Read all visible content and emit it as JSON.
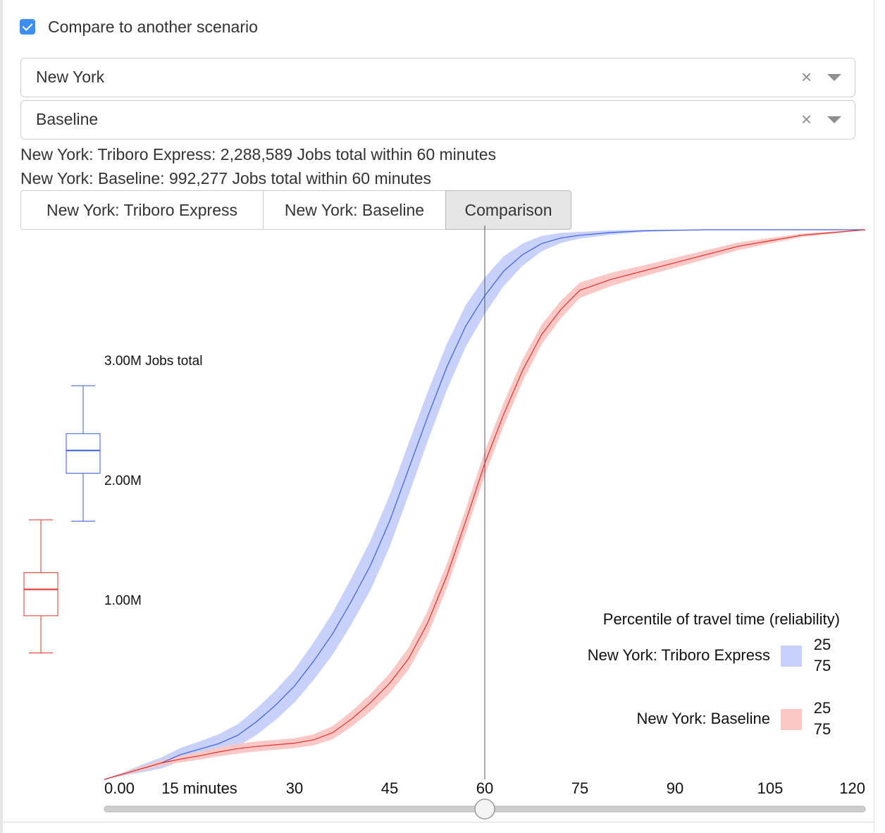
{
  "compare": {
    "label": "Compare to another scenario",
    "checked": true
  },
  "selects": [
    {
      "value": "New York",
      "clear_icon": "×"
    },
    {
      "value": "Baseline",
      "clear_icon": "×"
    }
  ],
  "summary": [
    "New York: Triboro Express: 2,288,589 Jobs total within 60 minutes",
    "New York: Baseline: 992,277 Jobs total within 60 minutes"
  ],
  "tabs": [
    {
      "label": "New York: Triboro Express",
      "active": false
    },
    {
      "label": "New York: Baseline",
      "active": false
    },
    {
      "label": "Comparison",
      "active": true
    }
  ],
  "colors": {
    "accent": "#3b8ff0",
    "triboro_line": "#3d5ee6",
    "triboro_band": "#c7d1fa",
    "baseline_line": "#e8302a",
    "baseline_band": "#fbc8c6"
  },
  "chart_data": {
    "type": "area",
    "x_tick_labels": [
      "0.00",
      "15 minutes",
      "30",
      "45",
      "60",
      "75",
      "90",
      "105",
      "120"
    ],
    "x_tick_values": [
      0,
      15,
      30,
      45,
      60,
      75,
      90,
      105,
      120
    ],
    "xlim": [
      0,
      120
    ],
    "y_tick_labels": [
      "1.00M",
      "2.00M",
      "3.00M Jobs total"
    ],
    "y_tick_values": [
      1000000,
      2000000,
      3000000
    ],
    "cutoff_minutes": 60,
    "series": [
      {
        "name": "New York: Triboro Express",
        "x": [
          0,
          3,
          6,
          9,
          12,
          15,
          18,
          21,
          24,
          27,
          30,
          33,
          36,
          39,
          42,
          45,
          48,
          51,
          54,
          57,
          60,
          63,
          66,
          69,
          72,
          75,
          80,
          85,
          90,
          95,
          100,
          105,
          110,
          115,
          120
        ],
        "median": [
          0,
          0.01,
          0.02,
          0.03,
          0.045,
          0.055,
          0.065,
          0.08,
          0.105,
          0.135,
          0.17,
          0.215,
          0.265,
          0.325,
          0.39,
          0.47,
          0.565,
          0.66,
          0.75,
          0.825,
          0.88,
          0.925,
          0.955,
          0.975,
          0.985,
          0.99,
          0.995,
          0.998,
          0.999,
          1.0,
          1.0,
          1.0,
          1.0,
          1.0,
          1.0
        ],
        "band": [
          0,
          0.003,
          0.007,
          0.01,
          0.012,
          0.014,
          0.017,
          0.02,
          0.024,
          0.027,
          0.03,
          0.034,
          0.038,
          0.042,
          0.045,
          0.047,
          0.047,
          0.045,
          0.042,
          0.038,
          0.033,
          0.027,
          0.02,
          0.014,
          0.009,
          0.006,
          0.004,
          0.002,
          0.001,
          0,
          0,
          0,
          0,
          0,
          0
        ],
        "box": {
          "min": 1650000,
          "q1": 2050000,
          "median": 2240000,
          "q3": 2380000,
          "max": 2780000
        }
      },
      {
        "name": "New York: Baseline",
        "x": [
          0,
          3,
          6,
          9,
          12,
          15,
          18,
          21,
          24,
          27,
          30,
          33,
          36,
          39,
          42,
          45,
          48,
          51,
          54,
          57,
          60,
          63,
          66,
          69,
          72,
          75,
          80,
          85,
          90,
          95,
          100,
          105,
          110,
          115,
          120
        ],
        "median": [
          0,
          0.01,
          0.02,
          0.03,
          0.037,
          0.043,
          0.05,
          0.056,
          0.06,
          0.063,
          0.066,
          0.072,
          0.085,
          0.11,
          0.14,
          0.175,
          0.22,
          0.285,
          0.37,
          0.47,
          0.575,
          0.665,
          0.745,
          0.81,
          0.855,
          0.89,
          0.91,
          0.925,
          0.94,
          0.955,
          0.97,
          0.98,
          0.99,
          0.995,
          1.0
        ],
        "band": [
          0,
          0.002,
          0.004,
          0.005,
          0.006,
          0.007,
          0.008,
          0.009,
          0.009,
          0.009,
          0.009,
          0.01,
          0.012,
          0.014,
          0.016,
          0.018,
          0.02,
          0.022,
          0.022,
          0.022,
          0.022,
          0.021,
          0.02,
          0.018,
          0.016,
          0.014,
          0.012,
          0.01,
          0.009,
          0.008,
          0.007,
          0.005,
          0.003,
          0.002,
          0
        ],
        "box": {
          "min": 550000,
          "q1": 860000,
          "median": 1080000,
          "q3": 1220000,
          "max": 1660000
        }
      }
    ],
    "legend": {
      "title": "Percentile of travel time (reliability)",
      "percentile_labels": [
        "25",
        "75"
      ],
      "position": "bottom-right"
    },
    "slider": {
      "value_minutes": 60
    }
  }
}
